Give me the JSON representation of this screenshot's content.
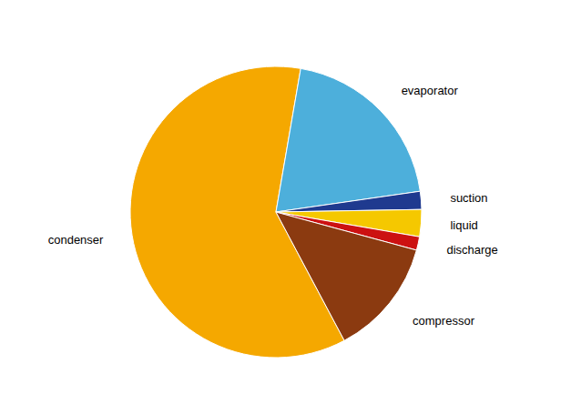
{
  "chart_data": {
    "type": "pie",
    "categories": [
      "condenser",
      "evaporator",
      "suction",
      "liquid",
      "discharge",
      "compressor"
    ],
    "values": [
      60.5,
      20,
      2,
      3,
      1.5,
      13
    ],
    "colors": [
      "#F5A800",
      "#4DAFDB",
      "#1F3A8F",
      "#F5C800",
      "#CC1111",
      "#8B3A10"
    ]
  }
}
